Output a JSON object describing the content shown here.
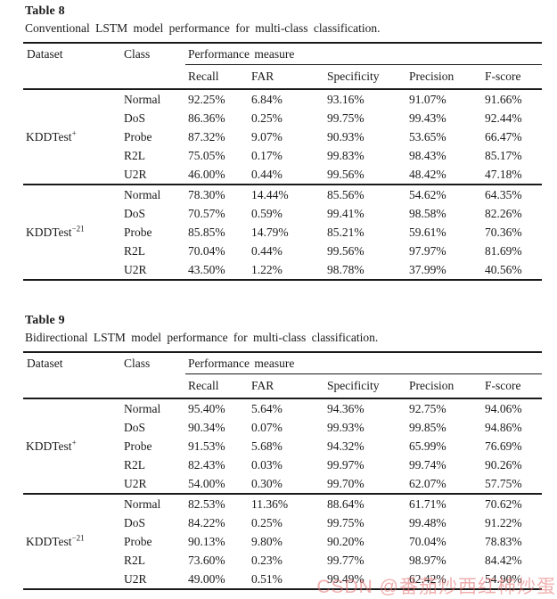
{
  "watermark": {
    "text": "CSDN @番茄炒西红柿炒蛋",
    "color": "rgba(228,110,110,0.55)"
  },
  "tables": [
    {
      "title": "Table 8",
      "caption": "Conventional LSTM model performance for multi-class classification.",
      "columns": {
        "dataset": "Dataset",
        "class": "Class",
        "group": "Performance measure",
        "measures": [
          "Recall",
          "FAR",
          "Specificity",
          "Precision",
          "F-score"
        ]
      },
      "groups": [
        {
          "dataset": {
            "name": "KDDTest",
            "sup": "+"
          },
          "rows": [
            {
              "class": "Normal",
              "values": [
                "92.25%",
                "6.84%",
                "93.16%",
                "91.07%",
                "91.66%"
              ]
            },
            {
              "class": "DoS",
              "values": [
                "86.36%",
                "0.25%",
                "99.75%",
                "99.43%",
                "92.44%"
              ]
            },
            {
              "class": "Probe",
              "values": [
                "87.32%",
                "9.07%",
                "90.93%",
                "53.65%",
                "66.47%"
              ]
            },
            {
              "class": "R2L",
              "values": [
                "75.05%",
                "0.17%",
                "99.83%",
                "98.43%",
                "85.17%"
              ]
            },
            {
              "class": "U2R",
              "values": [
                "46.00%",
                "0.44%",
                "99.56%",
                "48.42%",
                "47.18%"
              ]
            }
          ]
        },
        {
          "dataset": {
            "name": "KDDTest",
            "sup": "−21"
          },
          "rows": [
            {
              "class": "Normal",
              "values": [
                "78.30%",
                "14.44%",
                "85.56%",
                "54.62%",
                "64.35%"
              ]
            },
            {
              "class": "DoS",
              "values": [
                "70.57%",
                "0.59%",
                "99.41%",
                "98.58%",
                "82.26%"
              ]
            },
            {
              "class": "Probe",
              "values": [
                "85.85%",
                "14.79%",
                "85.21%",
                "59.61%",
                "70.36%"
              ]
            },
            {
              "class": "R2L",
              "values": [
                "70.04%",
                "0.44%",
                "99.56%",
                "97.97%",
                "81.69%"
              ]
            },
            {
              "class": "U2R",
              "values": [
                "43.50%",
                "1.22%",
                "98.78%",
                "37.99%",
                "40.56%"
              ]
            }
          ]
        }
      ]
    },
    {
      "title": "Table 9",
      "caption": "Bidirectional LSTM model performance for multi-class classification.",
      "columns": {
        "dataset": "Dataset",
        "class": "Class",
        "group": "Performance measure",
        "measures": [
          "Recall",
          "FAR",
          "Specificity",
          "Precision",
          "F-score"
        ]
      },
      "groups": [
        {
          "dataset": {
            "name": "KDDTest",
            "sup": "+"
          },
          "rows": [
            {
              "class": "Normal",
              "values": [
                "95.40%",
                "5.64%",
                "94.36%",
                "92.75%",
                "94.06%"
              ]
            },
            {
              "class": "DoS",
              "values": [
                "90.34%",
                "0.07%",
                "99.93%",
                "99.85%",
                "94.86%"
              ]
            },
            {
              "class": "Probe",
              "values": [
                "91.53%",
                "5.68%",
                "94.32%",
                "65.99%",
                "76.69%"
              ]
            },
            {
              "class": "R2L",
              "values": [
                "82.43%",
                "0.03%",
                "99.97%",
                "99.74%",
                "90.26%"
              ]
            },
            {
              "class": "U2R",
              "values": [
                "54.00%",
                "0.30%",
                "99.70%",
                "62.07%",
                "57.75%"
              ]
            }
          ]
        },
        {
          "dataset": {
            "name": "KDDTest",
            "sup": "−21"
          },
          "rows": [
            {
              "class": "Normal",
              "values": [
                "82.53%",
                "11.36%",
                "88.64%",
                "61.71%",
                "70.62%"
              ]
            },
            {
              "class": "DoS",
              "values": [
                "84.22%",
                "0.25%",
                "99.75%",
                "99.48%",
                "91.22%"
              ]
            },
            {
              "class": "Probe",
              "values": [
                "90.13%",
                "9.80%",
                "90.20%",
                "70.04%",
                "78.83%"
              ]
            },
            {
              "class": "R2L",
              "values": [
                "73.60%",
                "0.23%",
                "99.77%",
                "98.97%",
                "84.42%"
              ]
            },
            {
              "class": "U2R",
              "values": [
                "49.00%",
                "0.51%",
                "99.49%",
                "62.42%",
                "54.90%"
              ]
            }
          ]
        }
      ]
    }
  ]
}
